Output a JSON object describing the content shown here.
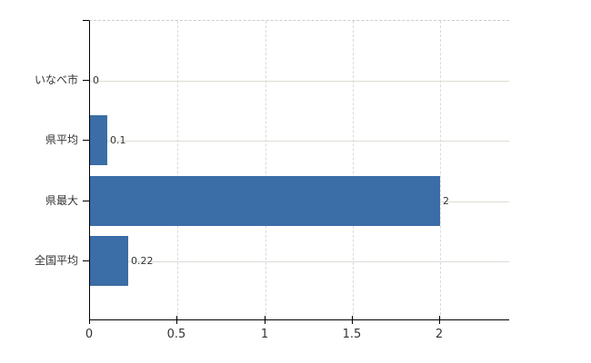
{
  "chart_data": {
    "type": "bar",
    "orientation": "horizontal",
    "title": "",
    "categories": [
      "いなべ市",
      "県平均",
      "県最大",
      "全国平均"
    ],
    "values": [
      0,
      0.1,
      2,
      0.22
    ],
    "value_labels": [
      "0",
      "0.1",
      "2",
      "0.22"
    ],
    "x_ticks": [
      0,
      0.5,
      1,
      1.5,
      2
    ],
    "x_tick_labels": [
      "0",
      "0.5",
      "1",
      "1.5",
      "2"
    ],
    "xlim": [
      0,
      2.4
    ],
    "grid": true,
    "legend_position": "none",
    "bar_color": "#3b6da6",
    "h_grid_color": "#d7ded3",
    "v_grid_color": "#d9dadf",
    "axis_color": "#000000",
    "text_color": "#333333",
    "background_color": "#ffffff"
  }
}
